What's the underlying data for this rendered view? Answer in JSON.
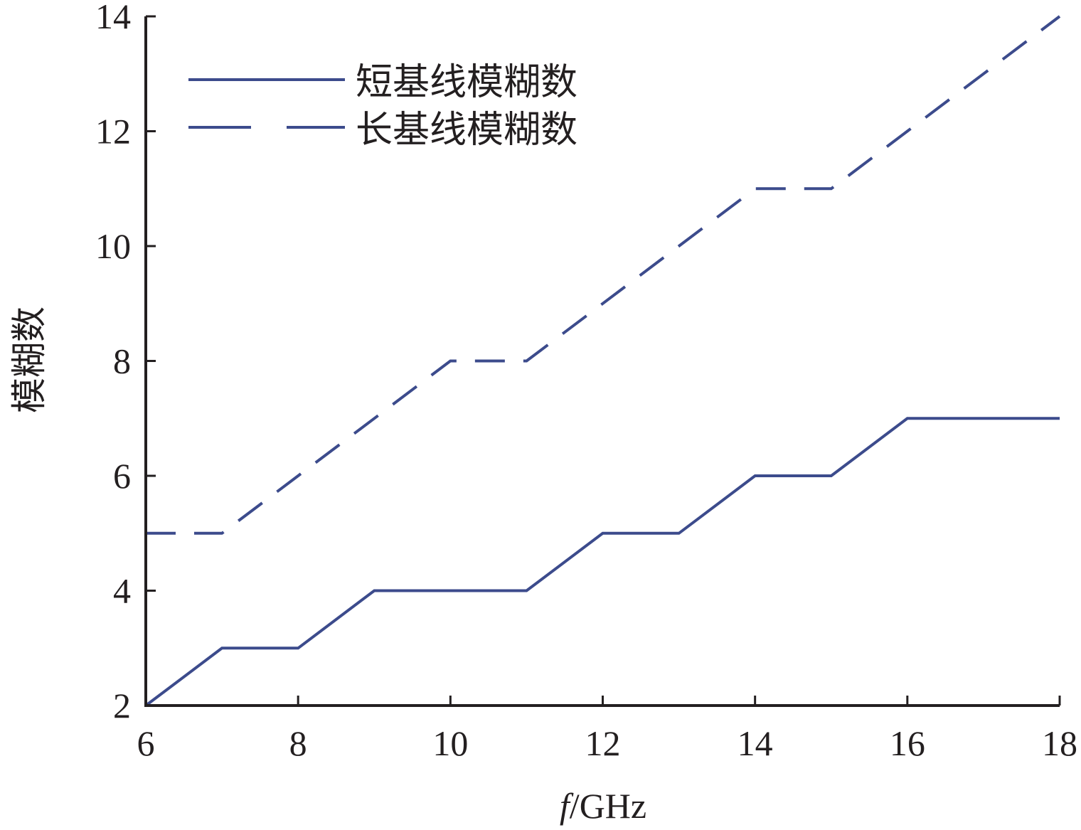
{
  "chart_data": {
    "type": "line",
    "xlabel_italic": "f",
    "xlabel_rest": "/GHz",
    "ylabel": "模糊数",
    "xlim": [
      6,
      18
    ],
    "ylim": [
      2,
      14
    ],
    "xticks": [
      "6",
      "8",
      "10",
      "12",
      "14",
      "16",
      "18"
    ],
    "yticks": [
      "2",
      "4",
      "6",
      "8",
      "10",
      "12",
      "14"
    ],
    "legend_position": "top-left",
    "line_color": "#3c4b8c",
    "axis_color": "#231f20",
    "series": [
      {
        "name": "短基线模糊数",
        "style": "solid",
        "x": [
          6,
          7,
          8,
          9,
          10,
          11,
          12,
          13,
          14,
          15,
          16,
          17,
          18
        ],
        "y": [
          2,
          3,
          3,
          4,
          4,
          4,
          5,
          5,
          6,
          6,
          7,
          7,
          7
        ]
      },
      {
        "name": "长基线模糊数",
        "style": "dashed",
        "x": [
          6,
          7,
          8,
          9,
          10,
          11,
          12,
          13,
          14,
          15,
          16,
          17,
          18
        ],
        "y": [
          5,
          5,
          6,
          7,
          8,
          8,
          9,
          10,
          11,
          11,
          12,
          13,
          14
        ]
      }
    ]
  }
}
